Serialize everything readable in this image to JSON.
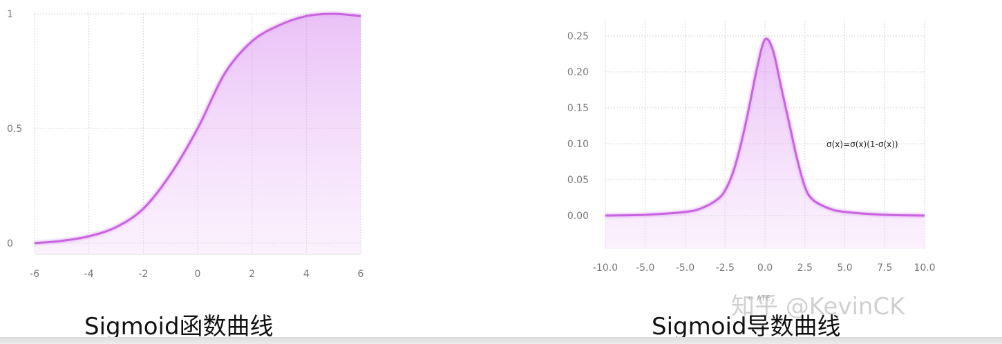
{
  "chart_data": [
    {
      "type": "area",
      "title": "",
      "xlabel": "",
      "ylabel": "",
      "xlim": [
        -6,
        6
      ],
      "ylim": [
        0,
        1
      ],
      "x_ticks": [
        "-6",
        "-4",
        "-2",
        "0",
        "2",
        "4",
        "6"
      ],
      "y_ticks": [
        "0",
        "0.5",
        "1"
      ],
      "x": [
        -6,
        -5,
        -4,
        -3,
        -2,
        -1,
        0,
        1,
        2,
        3,
        4,
        5,
        6
      ],
      "y": [
        0.0,
        0.01,
        0.03,
        0.07,
        0.15,
        0.3,
        0.5,
        0.74,
        0.88,
        0.95,
        0.99,
        1.0,
        0.99
      ],
      "grid": true,
      "color": "#c964e0"
    },
    {
      "type": "area",
      "title": "",
      "xlabel": "",
      "ylabel": "",
      "xlim": [
        -10,
        10
      ],
      "ylim": [
        -0.04,
        0.27
      ],
      "x_ticks": [
        "-10.0",
        "-5.0",
        "-5.0",
        "-2.5",
        "0.0",
        "2.5",
        "5.0",
        "7.5",
        "10.0"
      ],
      "y_ticks": [
        "0.00",
        "0.05",
        "0.10",
        "0.15",
        "0.20",
        "0.25"
      ],
      "x": [
        -10,
        -7.5,
        -5,
        -4,
        -3,
        -2.5,
        -2,
        -1.5,
        -1,
        -0.5,
        0,
        0.5,
        1,
        1.5,
        2,
        2.5,
        3,
        4,
        5,
        7.5,
        10
      ],
      "y": [
        0.0,
        0.001,
        0.005,
        0.01,
        0.022,
        0.035,
        0.06,
        0.1,
        0.15,
        0.205,
        0.245,
        0.23,
        0.18,
        0.13,
        0.08,
        0.04,
        0.022,
        0.01,
        0.005,
        0.001,
        0.0
      ],
      "annotation": "σ(x)=σ(x)(1-σ(x))",
      "grid": true,
      "color": "#c964e0"
    }
  ],
  "captions": {
    "left": "Sigmoid函数曲线",
    "right": "Sigmoid导数曲线"
  },
  "watermark": "知乎 @KevinCK",
  "faint_label": "← ATE"
}
